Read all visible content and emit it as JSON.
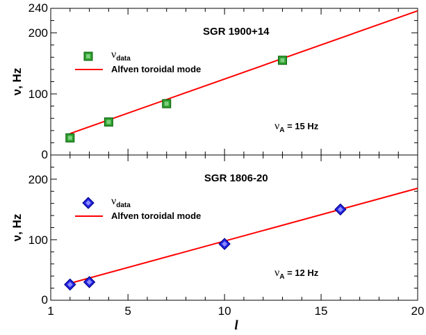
{
  "chart_data": [
    {
      "type": "line",
      "title": "SGR 1900+14",
      "ylabel": "ν, Hz",
      "xlabel": "",
      "xlim": [
        1,
        20
      ],
      "ylim": [
        0,
        240
      ],
      "yticks": [
        0,
        100,
        200,
        240
      ],
      "xticks": [
        1,
        5,
        10,
        15,
        20
      ],
      "legend_position": "upper-left",
      "annotation": {
        "symbol": "ν",
        "subscript": "A",
        "value": "= 15 Hz"
      },
      "series": [
        {
          "name": "νdata",
          "legend_symbol": "ν",
          "legend_subscript": "data",
          "kind": "scatter",
          "marker": "square",
          "color": "#2e9e2e",
          "x": [
            2,
            4,
            7,
            13
          ],
          "y": [
            28,
            54,
            84,
            155
          ]
        },
        {
          "name": "Alfven toroidal mode",
          "kind": "line",
          "color": "#ff0000",
          "x": [
            2,
            20
          ],
          "y": [
            35,
            236
          ]
        }
      ]
    },
    {
      "type": "line",
      "title": "SGR 1806-20",
      "ylabel": "ν, Hz",
      "xlabel": "l",
      "xlim": [
        1,
        20
      ],
      "ylim": [
        0,
        240
      ],
      "yticks": [
        0,
        100,
        200
      ],
      "xticks": [
        1,
        5,
        10,
        15,
        20
      ],
      "legend_position": "upper-left",
      "annotation": {
        "symbol": "ν",
        "subscript": "A",
        "value": "= 12 Hz"
      },
      "series": [
        {
          "name": "νdata",
          "legend_symbol": "ν",
          "legend_subscript": "data",
          "kind": "scatter",
          "marker": "diamond",
          "color": "#2020e0",
          "x": [
            2,
            3,
            10,
            16
          ],
          "y": [
            26,
            30,
            93,
            150
          ]
        },
        {
          "name": "Alfven toroidal mode",
          "kind": "line",
          "color": "#ff0000",
          "x": [
            2,
            20
          ],
          "y": [
            28,
            185
          ]
        }
      ]
    }
  ]
}
